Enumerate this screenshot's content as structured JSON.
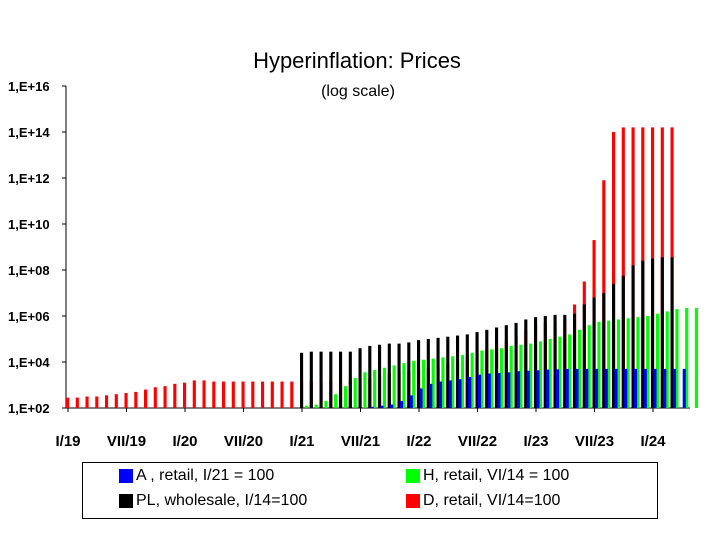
{
  "chart_data": {
    "type": "bar",
    "title": "Hyperinflation: Prices",
    "subtitle": "(log scale)",
    "scale": "log10",
    "ylim": [
      2,
      16
    ],
    "y_ticks": [
      {
        "exp": 16,
        "label": "1,E+16"
      },
      {
        "exp": 14,
        "label": "1,E+14"
      },
      {
        "exp": 12,
        "label": "1,E+12"
      },
      {
        "exp": 10,
        "label": "1,E+10"
      },
      {
        "exp": 8,
        "label": "1,E+08"
      },
      {
        "exp": 6,
        "label": "1,E+06"
      },
      {
        "exp": 4,
        "label": "1,E+04"
      },
      {
        "exp": 2,
        "label": "1,E+02"
      }
    ],
    "x_ticks": [
      {
        "month": 0,
        "label": "I/19"
      },
      {
        "month": 6,
        "label": "VII/19"
      },
      {
        "month": 12,
        "label": "I/20"
      },
      {
        "month": 18,
        "label": "VII/20"
      },
      {
        "month": 24,
        "label": "I/21"
      },
      {
        "month": 30,
        "label": "VII/21"
      },
      {
        "month": 36,
        "label": "I/22"
      },
      {
        "month": 42,
        "label": "VII/22"
      },
      {
        "month": 48,
        "label": "I/23"
      },
      {
        "month": 54,
        "label": "VII/23"
      },
      {
        "month": 60,
        "label": "I/24"
      }
    ],
    "months": 64,
    "series": [
      {
        "name": "A , retail, I/21 = 100",
        "color": "#0000ff",
        "start_month": 24,
        "values": [
          2,
          2,
          2,
          2,
          2,
          2,
          2,
          2.05,
          2.1,
          2.15,
          2.3,
          2.55,
          2.85,
          3.05,
          3.15,
          3.2,
          3.25,
          3.35,
          3.45,
          3.5,
          3.52,
          3.55,
          3.6,
          3.62,
          3.64,
          3.67,
          3.68,
          3.7,
          3.7,
          3.7,
          3.7,
          3.7,
          3.7,
          3.7,
          3.7,
          3.7,
          3.7,
          3.7,
          3.7,
          3.7
        ]
      },
      {
        "name": "PL, wholesale, I/14=100",
        "color": "#000000",
        "start_month": 24,
        "values": [
          4.4,
          4.45,
          4.45,
          4.45,
          4.45,
          4.45,
          4.6,
          4.7,
          4.75,
          4.8,
          4.8,
          4.85,
          4.95,
          5,
          5.05,
          5.1,
          5.15,
          5.2,
          5.3,
          5.4,
          5.5,
          5.6,
          5.7,
          5.85,
          5.95,
          6,
          6.05,
          6.05,
          6.1,
          6.5,
          6.8,
          7,
          7.4,
          7.75,
          8.2,
          8.4,
          8.5,
          8.55,
          8.55
        ]
      },
      {
        "name": "H, retail, VI/14 = 100",
        "color": "#00ff00",
        "start_month": 24,
        "values": [
          2.1,
          2.15,
          2.3,
          2.6,
          2.95,
          3.3,
          3.55,
          3.65,
          3.75,
          3.85,
          3.95,
          4.05,
          4.1,
          4.15,
          4.2,
          4.25,
          4.3,
          4.4,
          4.5,
          4.55,
          4.6,
          4.7,
          4.75,
          4.8,
          4.9,
          5,
          5.1,
          5.2,
          5.4,
          5.6,
          5.75,
          5.8,
          5.85,
          5.9,
          5.95,
          6,
          6.1,
          6.2,
          6.3,
          6.35,
          6.35
        ]
      },
      {
        "name": "D, retail, VI/14=100",
        "color": "#ff0000",
        "start_month": 0,
        "values": [
          2.45,
          2.45,
          2.5,
          2.5,
          2.55,
          2.6,
          2.65,
          2.7,
          2.8,
          2.9,
          2.95,
          3.05,
          3.1,
          3.2,
          3.2,
          3.15,
          3.15,
          3.15,
          3.15,
          3.15,
          3.15,
          3.15,
          3.15,
          3.15,
          3.15,
          3.15,
          3.15,
          3.15,
          3.15,
          3.2,
          3.25,
          3.3,
          3.4,
          3.5,
          3.55,
          3.6,
          3.65,
          3.7,
          3.8,
          3.9,
          4,
          4.2,
          4.4,
          4.55,
          4.7,
          4.9,
          5.1,
          5.4,
          5.6,
          5.7,
          5.75,
          5.85,
          6.5,
          7.5,
          9.3,
          11.9,
          14,
          14.2,
          14.2,
          14.2,
          14.2,
          14.2,
          14.2
        ]
      }
    ]
  }
}
